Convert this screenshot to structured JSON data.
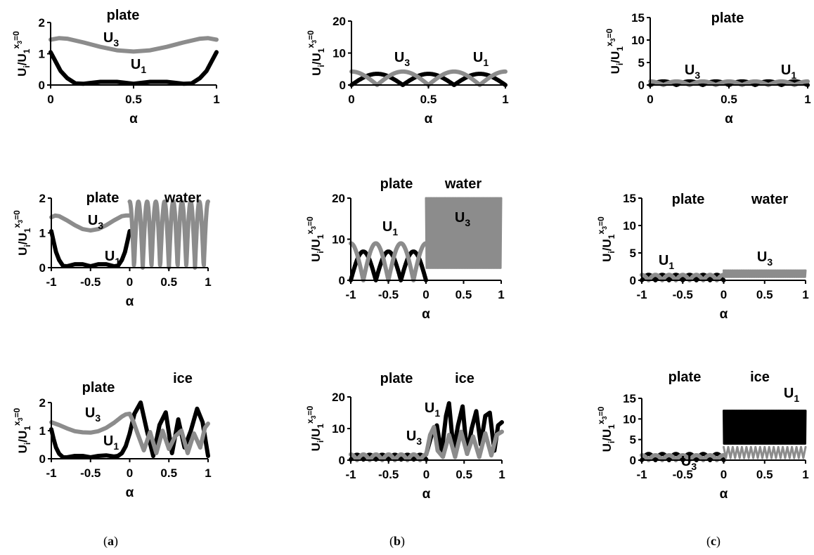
{
  "captions": [
    {
      "open": "(",
      "letter": "a",
      "close": ")"
    },
    {
      "open": "(",
      "letter": "b",
      "close": ")"
    },
    {
      "open": "(",
      "letter": "c",
      "close": ")"
    }
  ],
  "colors": {
    "U1": "#000000",
    "U3": "#8c8c8c"
  },
  "chart_data": [
    {
      "id": "a1",
      "type": "line",
      "ylim": [
        0,
        2
      ],
      "yticks": [
        "0",
        "1",
        "2"
      ],
      "xlim": [
        0,
        1
      ],
      "xticks": [
        "0",
        "0.5",
        "1"
      ],
      "ylabel": {
        "base": "U",
        "sub": "i",
        "mid": "/U",
        "sub2": "1",
        "sup": "x",
        "supsub": "3",
        "suptail": "=0"
      },
      "xlabel": "α",
      "labels": [
        {
          "text": "plate"
        },
        {
          "text": "U",
          "sub": "3"
        },
        {
          "text": "U",
          "sub": "1"
        }
      ],
      "series": [
        {
          "color": "U3",
          "x": [
            0,
            0.05,
            0.1,
            0.2,
            0.3,
            0.4,
            0.5,
            0.6,
            0.7,
            0.8,
            0.9,
            0.95,
            1
          ],
          "y": [
            1.45,
            1.5,
            1.48,
            1.36,
            1.22,
            1.11,
            1.07,
            1.11,
            1.22,
            1.36,
            1.48,
            1.5,
            1.45
          ]
        },
        {
          "color": "U1",
          "x": [
            0,
            0.03,
            0.06,
            0.1,
            0.15,
            0.2,
            0.3,
            0.4,
            0.5,
            0.6,
            0.7,
            0.8,
            0.85,
            0.9,
            0.94,
            0.97,
            1
          ],
          "y": [
            1.05,
            0.75,
            0.45,
            0.22,
            0.05,
            0.04,
            0.1,
            0.1,
            0.04,
            0.1,
            0.1,
            0.04,
            0.05,
            0.22,
            0.45,
            0.75,
            1.05
          ]
        }
      ]
    },
    {
      "id": "b1",
      "type": "line",
      "ylim": [
        0,
        20
      ],
      "yticks": [
        "0",
        "10",
        "20"
      ],
      "xlim": [
        0,
        1
      ],
      "xticks": [
        "0",
        "0.5",
        "1"
      ],
      "ylabel": {
        "base": "U",
        "sub": "i",
        "mid": "/U",
        "sub2": "1",
        "sup": "x",
        "supsub": "3",
        "suptail": "=0"
      },
      "xlabel": "α",
      "labels": [
        {
          "text": "U",
          "sub": "3"
        },
        {
          "text": "U",
          "sub": "1"
        }
      ],
      "series": [
        {
          "color": "U1",
          "fn": "absSin",
          "amp": 3.5,
          "freq": 3,
          "offset": 0,
          "from": 0,
          "to": 1
        },
        {
          "color": "U3",
          "fn": "absCos",
          "amp": 4.2,
          "freq": 3,
          "offset": 0,
          "from": 0,
          "to": 1
        }
      ]
    },
    {
      "id": "c1",
      "type": "line",
      "ylim": [
        0,
        15
      ],
      "yticks": [
        "0",
        "5",
        "10",
        "15"
      ],
      "xlim": [
        0,
        1
      ],
      "xticks": [
        "0",
        "0.5",
        "1"
      ],
      "ylabel": {
        "base": "U",
        "sub": "i",
        "mid": "/U",
        "sub2": "1",
        "sup": "x",
        "supsub": "3",
        "suptail": "=0"
      },
      "xlabel": "α",
      "labels": [
        {
          "text": "plate"
        },
        {
          "text": "U",
          "sub": "3"
        },
        {
          "text": "U",
          "sub": "1"
        }
      ],
      "series": [
        {
          "color": "U1",
          "fn": "absSin",
          "amp": 0.8,
          "freq": 6,
          "offset": 0,
          "from": 0,
          "to": 1
        },
        {
          "color": "U3",
          "fn": "absCos",
          "amp": 0.8,
          "freq": 6,
          "offset": 0,
          "from": 0,
          "to": 1
        }
      ]
    },
    {
      "id": "a2",
      "type": "line",
      "ylim": [
        0,
        2
      ],
      "yticks": [
        "0",
        "1",
        "2"
      ],
      "xlim": [
        -1,
        1
      ],
      "xticks": [
        "-1",
        "-0.5",
        "0",
        "0.5",
        "1"
      ],
      "ylabel": {
        "base": "U",
        "sub": "i",
        "mid": "/U",
        "sub2": "1",
        "sup": "x",
        "supsub": "3",
        "suptail": "=0"
      },
      "xlabel": "α",
      "labels": [
        {
          "text": "plate"
        },
        {
          "text": "water"
        },
        {
          "text": "U",
          "sub": "3"
        },
        {
          "text": "U",
          "sub": "1"
        }
      ],
      "series": [
        {
          "color": "U3",
          "x": [
            -1,
            -0.95,
            -0.9,
            -0.8,
            -0.7,
            -0.6,
            -0.5,
            -0.4,
            -0.3,
            -0.2,
            -0.1,
            -0.05,
            0
          ],
          "y": [
            1.45,
            1.5,
            1.48,
            1.36,
            1.22,
            1.11,
            1.07,
            1.11,
            1.22,
            1.36,
            1.48,
            1.5,
            1.5
          ]
        },
        {
          "color": "U1",
          "x": [
            -1,
            -0.97,
            -0.94,
            -0.9,
            -0.85,
            -0.8,
            -0.7,
            -0.6,
            -0.5,
            -0.4,
            -0.3,
            -0.2,
            -0.15,
            -0.1,
            -0.06,
            -0.03,
            0
          ],
          "y": [
            1.05,
            0.75,
            0.45,
            0.22,
            0.05,
            0.04,
            0.1,
            0.1,
            0.04,
            0.1,
            0.1,
            0.04,
            0.05,
            0.22,
            0.45,
            0.75,
            1.05
          ]
        },
        {
          "color": "U3",
          "fn": "absCos",
          "amp": 1.9,
          "freq": 9,
          "offset": 0,
          "from": 0,
          "to": 1
        }
      ]
    },
    {
      "id": "b2",
      "type": "line",
      "ylim": [
        0,
        20
      ],
      "yticks": [
        "0",
        "10",
        "20"
      ],
      "xlim": [
        -1,
        1
      ],
      "xticks": [
        "-1",
        "-0.5",
        "0",
        "0.5",
        "1"
      ],
      "ylabel": {
        "base": "U",
        "sub": "i",
        "mid": "/U",
        "sub2": "1",
        "sup": "x",
        "supsub": "3",
        "suptail": "=0"
      },
      "xlabel": "α",
      "labels": [
        {
          "text": "plate"
        },
        {
          "text": "water"
        },
        {
          "text": "U",
          "sub": "1"
        },
        {
          "text": "U",
          "sub": "3"
        }
      ],
      "series": [
        {
          "color": "U1",
          "fn": "absSin",
          "amp": 7,
          "freq": 3,
          "offset": 0,
          "from": -1,
          "to": 0
        },
        {
          "color": "U3",
          "fn": "absCos",
          "amp": 9,
          "freq": 3,
          "offset": 0,
          "from": -1,
          "to": 0
        },
        {
          "color": "U3",
          "fn": "band",
          "min": 3,
          "max": 20,
          "freq": 60,
          "from": 0,
          "to": 1
        }
      ]
    },
    {
      "id": "c2",
      "type": "line",
      "ylim": [
        0,
        15
      ],
      "yticks": [
        "0",
        "5",
        "10",
        "15"
      ],
      "xlim": [
        -1,
        1
      ],
      "xticks": [
        "-1",
        "-0.5",
        "0",
        "0.5",
        "1"
      ],
      "ylabel": {
        "base": "U",
        "sub": "i",
        "mid": "/U",
        "sub2": "1",
        "sup": "x",
        "supsub": "3",
        "suptail": "=0"
      },
      "xlabel": "α",
      "labels": [
        {
          "text": "plate"
        },
        {
          "text": "water"
        },
        {
          "text": "U",
          "sub": "1"
        },
        {
          "text": "U",
          "sub": "3"
        }
      ],
      "series": [
        {
          "color": "U1",
          "fn": "absSin",
          "amp": 1,
          "freq": 6,
          "offset": 0,
          "from": -1,
          "to": 0
        },
        {
          "color": "U3",
          "fn": "absCos",
          "amp": 1,
          "freq": 6,
          "offset": 0,
          "from": -1,
          "to": 0
        },
        {
          "color": "U3",
          "fn": "band",
          "min": 0.6,
          "max": 1.8,
          "freq": 80,
          "from": 0,
          "to": 1
        }
      ]
    },
    {
      "id": "a3",
      "type": "line",
      "ylim": [
        0,
        2
      ],
      "yticks": [
        "0",
        "1",
        "2"
      ],
      "xlim": [
        -1,
        1
      ],
      "xticks": [
        "-1",
        "-0.5",
        "0",
        "0.5",
        "1"
      ],
      "ylabel": {
        "base": "U",
        "sub": "i",
        "mid": "/U",
        "sub2": "1",
        "sup": "x",
        "supsub": "3",
        "suptail": "=0"
      },
      "xlabel": "α",
      "labels": [
        {
          "text": "plate"
        },
        {
          "text": "ice"
        },
        {
          "text": "U",
          "sub": "3"
        },
        {
          "text": "U",
          "sub": "1"
        }
      ],
      "series": [
        {
          "color": "U3",
          "x": [
            -1,
            -0.95,
            -0.9,
            -0.8,
            -0.7,
            -0.6,
            -0.5,
            -0.4,
            -0.3,
            -0.2,
            -0.1,
            -0.05,
            0
          ],
          "y": [
            1.3,
            1.25,
            1.2,
            1.08,
            0.98,
            0.94,
            0.93,
            0.98,
            1.1,
            1.28,
            1.5,
            1.58,
            1.6
          ]
        },
        {
          "color": "U1",
          "x": [
            -1,
            -0.97,
            -0.94,
            -0.9,
            -0.85,
            -0.8,
            -0.7,
            -0.6,
            -0.5,
            -0.4,
            -0.3,
            -0.2,
            -0.15,
            -0.1,
            -0.05,
            0
          ],
          "y": [
            1.05,
            0.7,
            0.4,
            0.18,
            0.05,
            0.05,
            0.1,
            0.1,
            0.05,
            0.1,
            0.12,
            0.08,
            0.1,
            0.2,
            0.45,
            0.9
          ]
        },
        {
          "color": "U1",
          "x": [
            0,
            0.06,
            0.14,
            0.22,
            0.3,
            0.38,
            0.46,
            0.54,
            0.62,
            0.7,
            0.78,
            0.86,
            0.93,
            1
          ],
          "y": [
            0.9,
            1.6,
            2.0,
            1.0,
            0.1,
            1.2,
            1.65,
            0.2,
            1.4,
            0.4,
            1.0,
            1.78,
            1.3,
            0.1
          ]
        },
        {
          "color": "U3",
          "x": [
            0,
            0.05,
            0.1,
            0.18,
            0.26,
            0.34,
            0.42,
            0.5,
            0.58,
            0.66,
            0.74,
            0.82,
            0.9,
            0.96,
            1
          ],
          "y": [
            1.6,
            1.3,
            0.9,
            0.3,
            0.95,
            0.2,
            1.0,
            0.35,
            0.8,
            1.0,
            0.2,
            0.9,
            0.4,
            1.1,
            1.25
          ]
        }
      ]
    },
    {
      "id": "b3",
      "type": "line",
      "ylim": [
        0,
        20
      ],
      "yticks": [
        "0",
        "10",
        "20"
      ],
      "xlim": [
        -1,
        1
      ],
      "xticks": [
        "-1",
        "-0.5",
        "0",
        "0.5",
        "1"
      ],
      "ylabel": {
        "base": "U",
        "sub": "i",
        "mid": "/U",
        "sub2": "1",
        "sup": "x",
        "supsub": "3",
        "suptail": "=0"
      },
      "xlabel": "α",
      "labels": [
        {
          "text": "plate"
        },
        {
          "text": "ice"
        },
        {
          "text": "U",
          "sub": "1"
        },
        {
          "text": "U",
          "sub": "3"
        }
      ],
      "series": [
        {
          "color": "U1",
          "fn": "absSin",
          "amp": 1.5,
          "freq": 6,
          "offset": 0.2,
          "from": -1,
          "to": 0
        },
        {
          "color": "U3",
          "fn": "absCos",
          "amp": 1.8,
          "freq": 6,
          "offset": 0,
          "from": -1,
          "to": 0
        },
        {
          "color": "U1",
          "x": [
            0,
            0.07,
            0.14,
            0.2,
            0.26,
            0.3,
            0.36,
            0.42,
            0.48,
            0.54,
            0.6,
            0.66,
            0.72,
            0.78,
            0.84,
            0.9,
            0.95,
            1
          ],
          "y": [
            2,
            8,
            11,
            2,
            14,
            18,
            3,
            11,
            17,
            2,
            10,
            15.5,
            5,
            14,
            15,
            3,
            11,
            12
          ]
        },
        {
          "color": "U3",
          "x": [
            0,
            0.05,
            0.1,
            0.15,
            0.22,
            0.3,
            0.38,
            0.46,
            0.54,
            0.62,
            0.7,
            0.78,
            0.86,
            0.93,
            1
          ],
          "y": [
            2,
            8,
            10.5,
            3,
            1,
            8,
            1,
            9,
            2,
            7.5,
            1,
            8.5,
            1.5,
            8,
            9
          ]
        }
      ]
    },
    {
      "id": "c3",
      "type": "line",
      "ylim": [
        0,
        15
      ],
      "yticks": [
        "0",
        "5",
        "10",
        "15"
      ],
      "xlim": [
        -1,
        1
      ],
      "xticks": [
        "-1",
        "-0.5",
        "0",
        "0.5",
        "1"
      ],
      "ylabel": {
        "base": "U",
        "sub": "i",
        "mid": "/U",
        "sub2": "1",
        "sup": "x",
        "supsub": "3",
        "suptail": "=0"
      },
      "xlabel": "α",
      "labels": [
        {
          "text": "plate"
        },
        {
          "text": "ice"
        },
        {
          "text": "U",
          "sub": "3"
        },
        {
          "text": "U",
          "sub": "1"
        }
      ],
      "series": [
        {
          "color": "U1",
          "fn": "absSin",
          "amp": 1.5,
          "freq": 6,
          "offset": 0,
          "from": -1,
          "to": 0
        },
        {
          "color": "U3",
          "fn": "absCos",
          "amp": 1.2,
          "freq": 6,
          "offset": 0,
          "from": -1,
          "to": 0
        },
        {
          "color": "U1",
          "fn": "band",
          "min": 4,
          "max": 12,
          "freq": 120,
          "from": 0,
          "to": 1
        },
        {
          "color": "U3",
          "fn": "band",
          "min": 0.5,
          "max": 3.2,
          "freq": 18,
          "from": 0,
          "to": 1
        }
      ]
    }
  ]
}
